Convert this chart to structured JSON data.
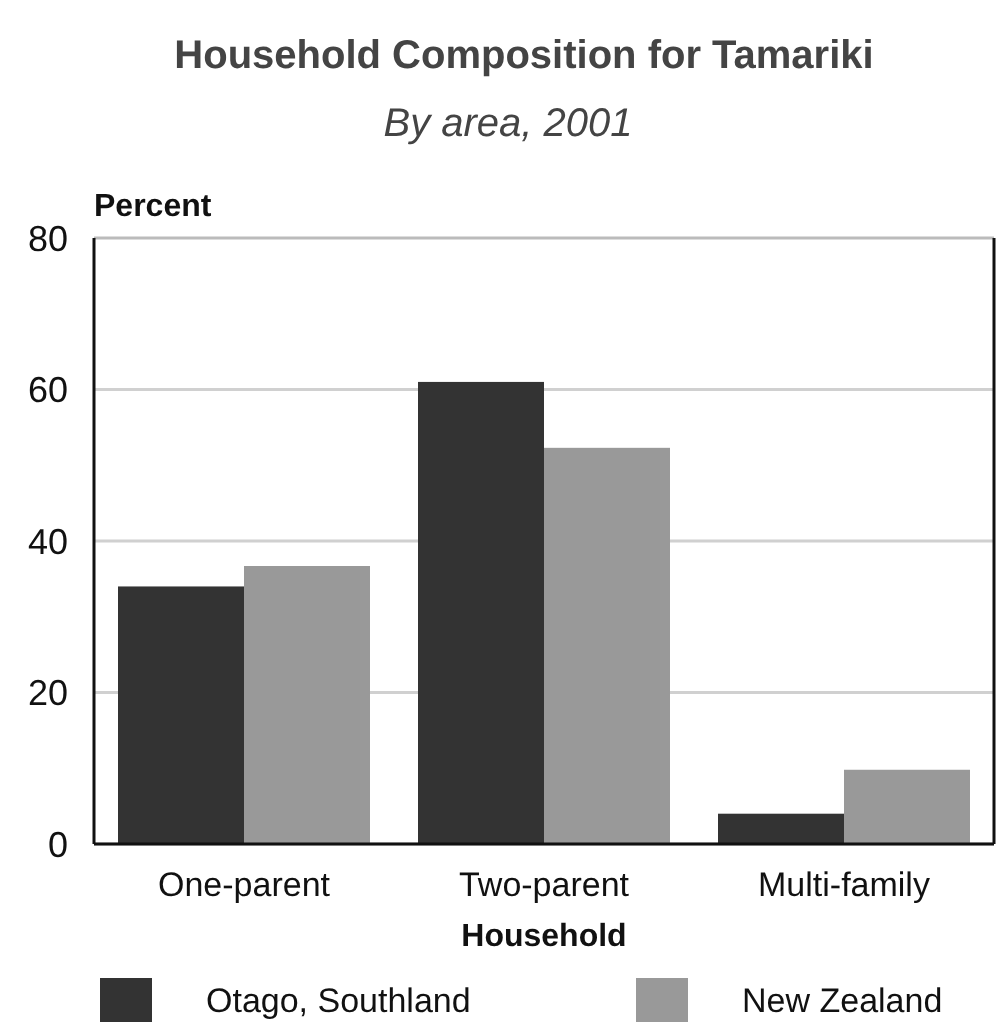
{
  "chart_data": {
    "type": "bar",
    "title": "Household Composition for Tamariki",
    "subtitle": "By area, 2001",
    "xlabel": "Household",
    "ylabel": "Percent",
    "categories": [
      "One-parent",
      "Two-parent",
      "Multi-family"
    ],
    "series": [
      {
        "name": "Otago, Southland",
        "color": "#333333",
        "values": [
          34,
          61,
          4
        ]
      },
      {
        "name": "New Zealand",
        "color": "#999999",
        "values": [
          36.7,
          52.3,
          9.8
        ]
      }
    ],
    "ylim": [
      0,
      80
    ],
    "yticks": [
      0,
      20,
      40,
      60,
      80
    ],
    "grid": "y",
    "legend": "bottom"
  }
}
